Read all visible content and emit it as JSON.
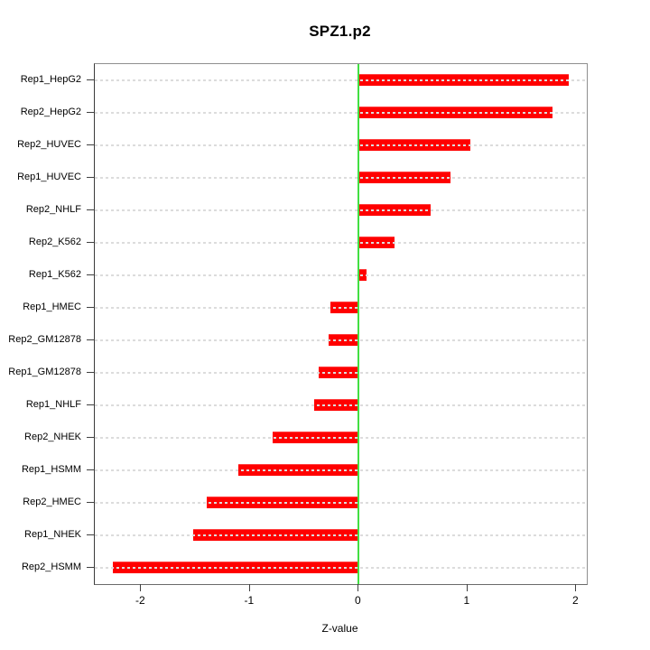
{
  "title": "SPZ1.p2",
  "axis": {
    "xlabel": "Z-value",
    "x_ticks": [
      "-2",
      "-1",
      "0",
      "1",
      "2"
    ],
    "x_tick_values": [
      -2,
      -1,
      0,
      1,
      2
    ]
  },
  "colors": {
    "bar": "#ff0000",
    "zero_line": "#42df42",
    "grid": "#dcdcdc",
    "box": "#8f8f8f",
    "axis": "#404040"
  },
  "chart_data": {
    "type": "bar",
    "orientation": "horizontal",
    "title": "SPZ1.p2",
    "xlabel": "Z-value",
    "xlim": [
      -2.427,
      2.097
    ],
    "grid": "horizontal dashed light-gray line per category",
    "legend": "none",
    "zero_reference_line": 0,
    "categories": [
      "Rep1_HepG2",
      "Rep2_HepG2",
      "Rep2_HUVEC",
      "Rep1_HUVEC",
      "Rep2_NHLF",
      "Rep2_K562",
      "Rep1_K562",
      "Rep1_HMEC",
      "Rep2_GM12878",
      "Rep1_GM12878",
      "Rep1_NHLF",
      "Rep2_NHEK",
      "Rep1_HSMM",
      "Rep2_HMEC",
      "Rep1_NHEK",
      "Rep2_HSMM"
    ],
    "values": [
      1.93,
      1.78,
      1.03,
      0.84,
      0.66,
      0.33,
      0.07,
      -0.26,
      -0.28,
      -0.37,
      -0.41,
      -0.79,
      -1.11,
      -1.4,
      -1.52,
      -2.26
    ]
  }
}
